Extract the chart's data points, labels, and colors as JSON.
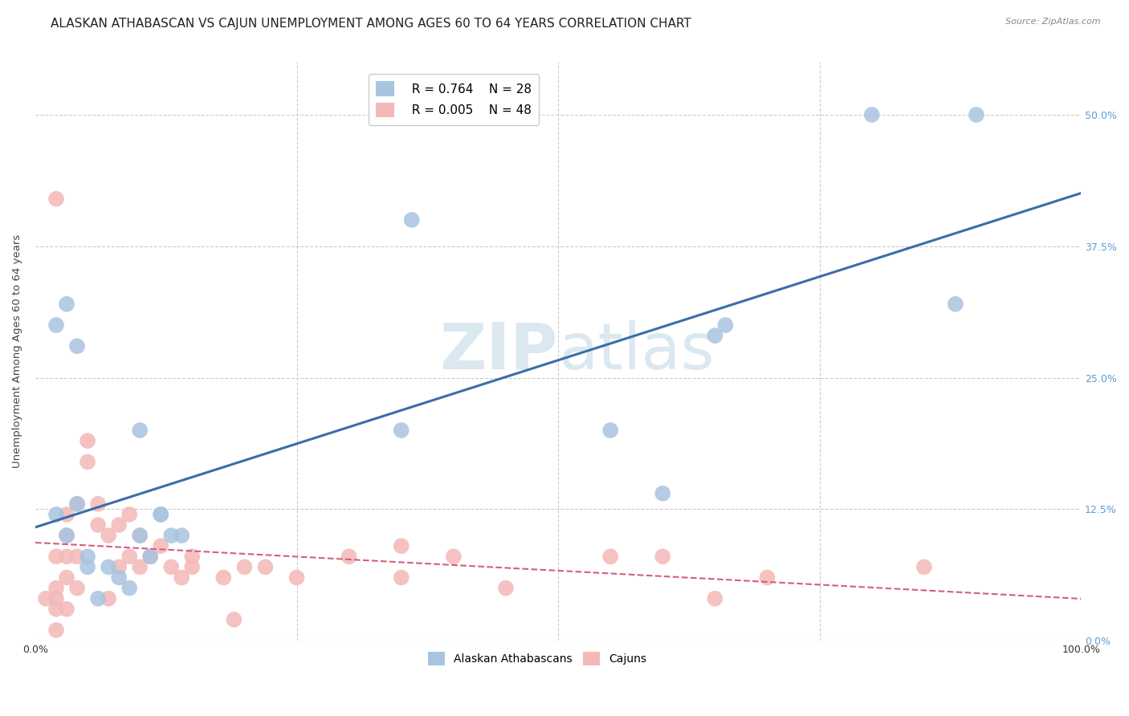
{
  "title": "ALASKAN ATHABASCAN VS CAJUN UNEMPLOYMENT AMONG AGES 60 TO 64 YEARS CORRELATION CHART",
  "source": "Source: ZipAtlas.com",
  "ylabel": "Unemployment Among Ages 60 to 64 years",
  "xlim": [
    0,
    1.0
  ],
  "ylim": [
    -0.02,
    0.57
  ],
  "plot_ylim": [
    0.0,
    0.55
  ],
  "yticks": [
    0.0,
    0.125,
    0.25,
    0.375,
    0.5
  ],
  "ytick_labels": [
    "0.0%",
    "12.5%",
    "25.0%",
    "37.5%",
    "50.0%"
  ],
  "xticks": [
    0.0,
    0.25,
    0.5,
    0.75,
    1.0
  ],
  "xtick_labels": [
    "0.0%",
    "",
    "",
    "",
    "100.0%"
  ],
  "legend_blue_r": "0.764",
  "legend_blue_n": "28",
  "legend_pink_r": "0.005",
  "legend_pink_n": "48",
  "blue_color": "#a8c4e0",
  "pink_color": "#f4b8b8",
  "trend_blue_color": "#3a6ea8",
  "trend_pink_color": "#d06080",
  "background_color": "#ffffff",
  "grid_color": "#cccccc",
  "watermark_color": "#dce8f0",
  "tick_color": "#5b9bd5",
  "blue_points_x": [
    0.02,
    0.03,
    0.04,
    0.05,
    0.05,
    0.06,
    0.07,
    0.08,
    0.09,
    0.1,
    0.11,
    0.12,
    0.13,
    0.14,
    0.02,
    0.03,
    0.04,
    0.1,
    0.12,
    0.35,
    0.36,
    0.55,
    0.6,
    0.65,
    0.66,
    0.8,
    0.88,
    0.9
  ],
  "blue_points_y": [
    0.12,
    0.1,
    0.13,
    0.08,
    0.07,
    0.04,
    0.07,
    0.06,
    0.05,
    0.1,
    0.08,
    0.12,
    0.1,
    0.1,
    0.3,
    0.32,
    0.28,
    0.2,
    0.12,
    0.2,
    0.4,
    0.2,
    0.14,
    0.29,
    0.3,
    0.5,
    0.32,
    0.5
  ],
  "pink_points_x": [
    0.01,
    0.02,
    0.02,
    0.02,
    0.02,
    0.02,
    0.02,
    0.03,
    0.03,
    0.03,
    0.03,
    0.03,
    0.04,
    0.04,
    0.04,
    0.05,
    0.05,
    0.06,
    0.06,
    0.07,
    0.07,
    0.08,
    0.08,
    0.09,
    0.09,
    0.1,
    0.1,
    0.11,
    0.12,
    0.13,
    0.14,
    0.15,
    0.15,
    0.18,
    0.19,
    0.2,
    0.22,
    0.25,
    0.3,
    0.35,
    0.35,
    0.4,
    0.45,
    0.55,
    0.6,
    0.65,
    0.7,
    0.85
  ],
  "pink_points_y": [
    0.04,
    0.42,
    0.08,
    0.05,
    0.04,
    0.03,
    0.01,
    0.12,
    0.1,
    0.08,
    0.06,
    0.03,
    0.13,
    0.08,
    0.05,
    0.19,
    0.17,
    0.13,
    0.11,
    0.1,
    0.04,
    0.11,
    0.07,
    0.12,
    0.08,
    0.1,
    0.07,
    0.08,
    0.09,
    0.07,
    0.06,
    0.08,
    0.07,
    0.06,
    0.02,
    0.07,
    0.07,
    0.06,
    0.08,
    0.06,
    0.09,
    0.08,
    0.05,
    0.08,
    0.08,
    0.04,
    0.06,
    0.07
  ],
  "title_fontsize": 11,
  "axis_fontsize": 9.5,
  "tick_fontsize": 9,
  "legend_fontsize": 11
}
